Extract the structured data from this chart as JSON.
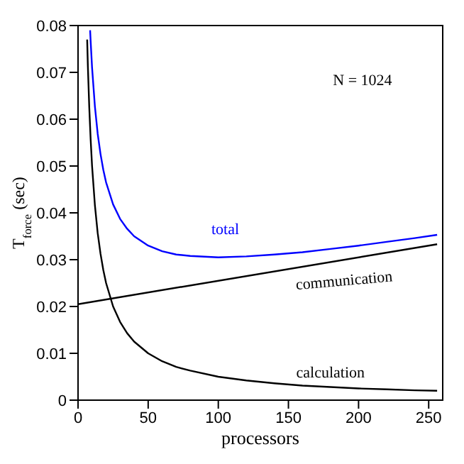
{
  "chart_data": {
    "type": "line",
    "xlabel": "processors",
    "ylabel": "T$_{force}$ (sec)",
    "xlim": [
      0,
      260
    ],
    "xticks": [
      0,
      50,
      100,
      150,
      200,
      250
    ],
    "ylim": [
      0,
      0.08
    ],
    "yticks": [
      0,
      0.01,
      0.02,
      0.03,
      0.04,
      0.05,
      0.06,
      0.07,
      0.08
    ],
    "grid": false,
    "legend": false,
    "marker": "none",
    "line_style": "solid",
    "annotations": [
      "N = 1024"
    ],
    "series": [
      {
        "name": "total",
        "color": "#0000ff",
        "x": [
          8.6,
          9,
          10,
          12,
          14,
          16,
          18,
          20,
          25,
          30,
          35,
          40,
          50,
          60,
          70,
          80,
          100,
          120,
          140,
          160,
          180,
          200,
          220,
          240,
          256
        ],
        "values": [
          0.079,
          0.0766,
          0.071,
          0.0628,
          0.0569,
          0.0526,
          0.0492,
          0.0465,
          0.0418,
          0.0387,
          0.0366,
          0.035,
          0.033,
          0.0318,
          0.0311,
          0.0308,
          0.0305,
          0.0307,
          0.0311,
          0.0316,
          0.0323,
          0.033,
          0.0338,
          0.0346,
          0.0353
        ]
      },
      {
        "name": "communication",
        "color": "#000000",
        "x": [
          0,
          256
        ],
        "values": [
          0.0205,
          0.0333
        ]
      },
      {
        "name": "calculation",
        "color": "#000000",
        "x": [
          6.5,
          7,
          8,
          9,
          10,
          12,
          14,
          16,
          18,
          20,
          25,
          30,
          35,
          40,
          50,
          60,
          70,
          80,
          100,
          120,
          140,
          160,
          180,
          200,
          220,
          240,
          256
        ],
        "values": [
          0.077,
          0.0714,
          0.0625,
          0.0556,
          0.05,
          0.0417,
          0.0357,
          0.0313,
          0.0278,
          0.025,
          0.02,
          0.0167,
          0.0143,
          0.0125,
          0.01,
          0.0083,
          0.0071,
          0.0063,
          0.005,
          0.0042,
          0.0036,
          0.0031,
          0.0028,
          0.0025,
          0.0023,
          0.0021,
          0.002
        ]
      }
    ]
  }
}
